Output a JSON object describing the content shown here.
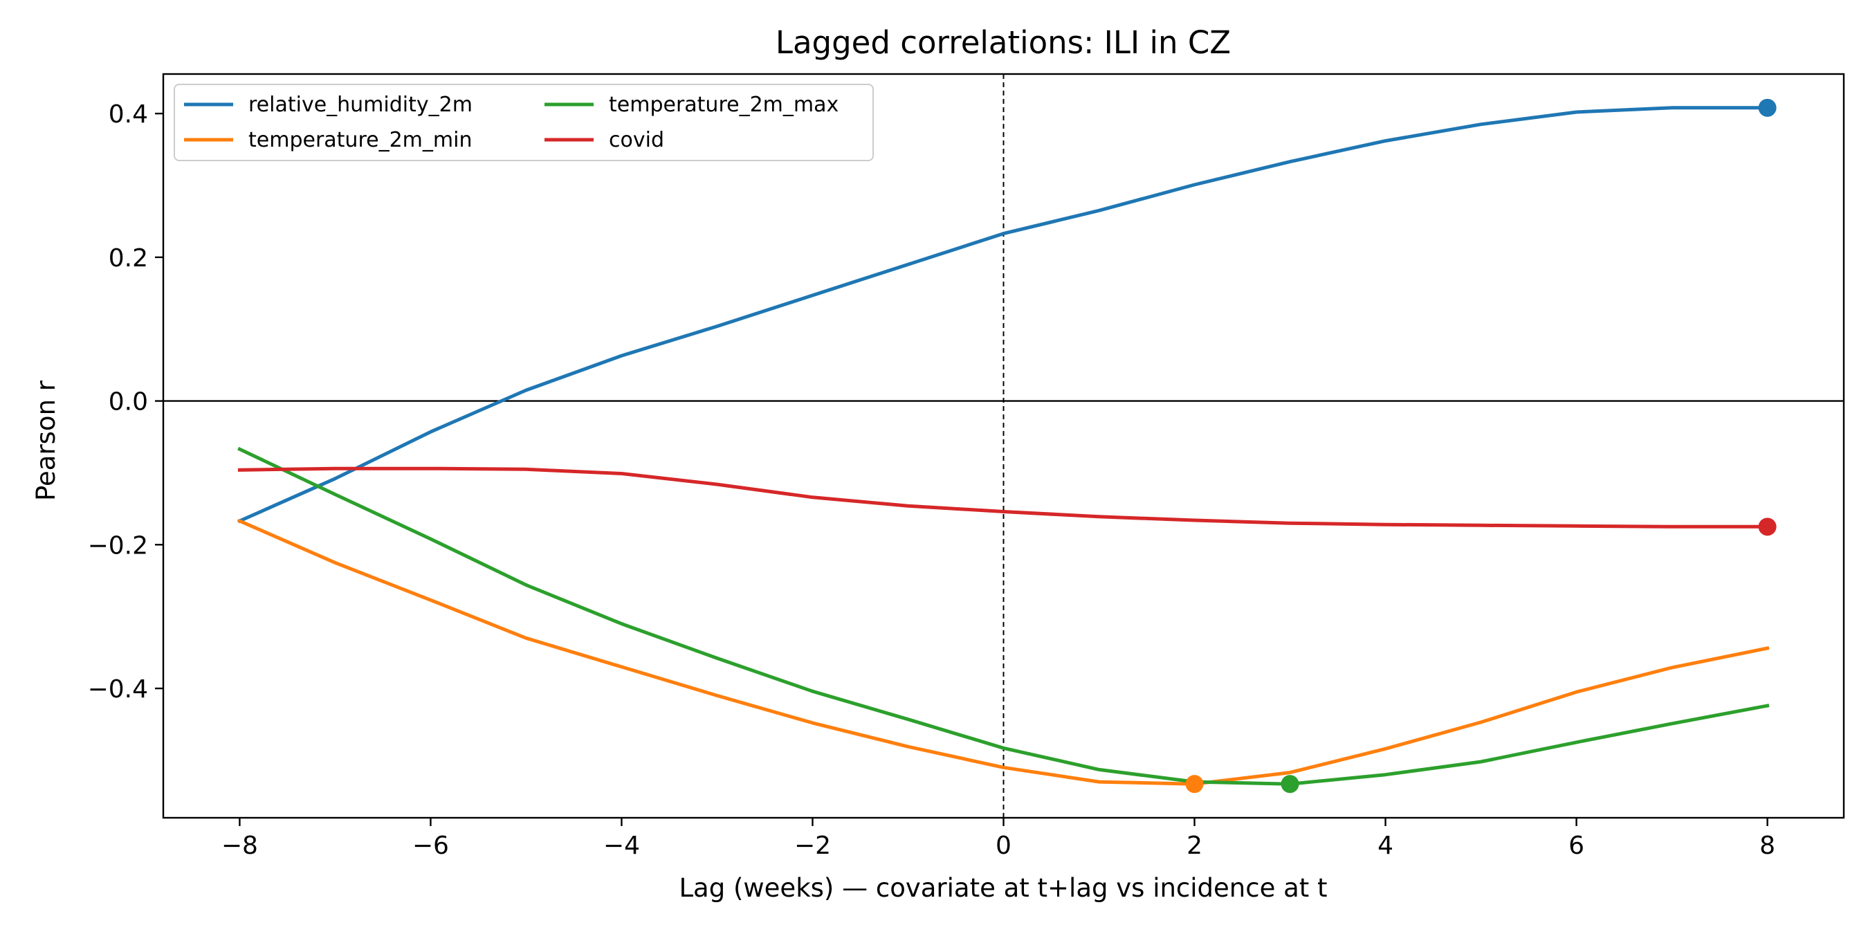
{
  "chart_data": {
    "type": "line",
    "title": "Lagged correlations: ILI in CZ",
    "xlabel": "Lag (weeks) — covariate at t+lag vs incidence at t",
    "ylabel": "Pearson r",
    "xlim": [
      -8.8,
      8.8
    ],
    "ylim": [
      -0.58,
      0.455
    ],
    "x": [
      -8,
      -7,
      -6,
      -5,
      -4,
      -3,
      -2,
      -1,
      0,
      1,
      2,
      3,
      4,
      5,
      6,
      7,
      8
    ],
    "xticks": [
      -8,
      -6,
      -4,
      -2,
      0,
      2,
      4,
      6,
      8
    ],
    "xtick_labels": [
      "−8",
      "−6",
      "−4",
      "−2",
      "0",
      "2",
      "4",
      "6",
      "8"
    ],
    "yticks": [
      0.4,
      0.2,
      0.0,
      -0.2,
      -0.4
    ],
    "ytick_labels": [
      "0.4",
      "0.2",
      "0.0",
      "−0.2",
      "−0.4"
    ],
    "grid": false,
    "legend_position": "top-left",
    "legend_columns": 2,
    "reference_lines": {
      "horizontal_y": 0.0,
      "vertical_x": 0
    },
    "series": [
      {
        "name": "relative_humidity_2m",
        "color": "#1f77b4",
        "values": [
          -0.167,
          -0.108,
          -0.043,
          0.015,
          0.063,
          0.104,
          0.147,
          0.19,
          0.233,
          0.265,
          0.301,
          0.333,
          0.362,
          0.385,
          0.402,
          0.408,
          0.408
        ],
        "marker_x": 8,
        "marker_y": 0.408
      },
      {
        "name": "temperature_2m_min",
        "color": "#ff7f0e",
        "values": [
          -0.167,
          -0.225,
          -0.277,
          -0.33,
          -0.37,
          -0.41,
          -0.448,
          -0.481,
          -0.51,
          -0.53,
          -0.533,
          -0.517,
          -0.484,
          -0.447,
          -0.405,
          -0.371,
          -0.344
        ],
        "marker_x": 2,
        "marker_y": -0.533
      },
      {
        "name": "temperature_2m_max",
        "color": "#2ca02c",
        "values": [
          -0.067,
          -0.13,
          -0.192,
          -0.256,
          -0.31,
          -0.358,
          -0.404,
          -0.443,
          -0.483,
          -0.513,
          -0.53,
          -0.533,
          -0.52,
          -0.502,
          -0.475,
          -0.449,
          -0.424
        ],
        "marker_x": 3,
        "marker_y": -0.533
      },
      {
        "name": "covid",
        "color": "#d62728",
        "values": [
          -0.096,
          -0.094,
          -0.094,
          -0.095,
          -0.101,
          -0.116,
          -0.134,
          -0.146,
          -0.154,
          -0.161,
          -0.166,
          -0.17,
          -0.172,
          -0.173,
          -0.174,
          -0.175,
          -0.175
        ],
        "marker_x": 8,
        "marker_y": -0.175
      }
    ]
  }
}
